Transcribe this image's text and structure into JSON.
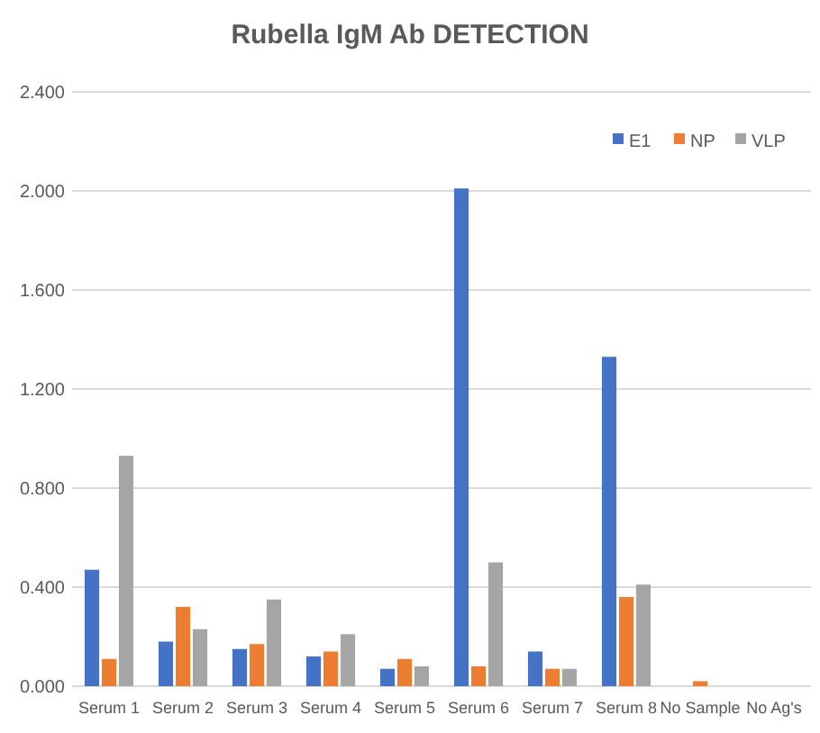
{
  "chart_data": {
    "type": "bar",
    "title": "Rubella IgM Ab DETECTION",
    "categories": [
      "Serum 1",
      "Serum 2",
      "Serum 3",
      "Serum 4",
      "Serum 5",
      "Serum 6",
      "Serum 7",
      "Serum 8",
      "No Sample",
      "No Ag's"
    ],
    "series": [
      {
        "name": "E1",
        "color": "#4472c4",
        "values": [
          0.47,
          0.18,
          0.15,
          0.12,
          0.07,
          2.01,
          0.14,
          1.33,
          0,
          0
        ]
      },
      {
        "name": "NP",
        "color": "#ed7d31",
        "values": [
          0.11,
          0.32,
          0.17,
          0.14,
          0.11,
          0.08,
          0.07,
          0.36,
          0.02,
          0
        ]
      },
      {
        "name": "VLP",
        "color": "#a5a5a5",
        "values": [
          0.93,
          0.23,
          0.35,
          0.21,
          0.08,
          0.5,
          0.07,
          0.41,
          0,
          0
        ]
      }
    ],
    "ylim": [
      0,
      2.4
    ],
    "yticks": [
      {
        "value": 0,
        "label": "0.000"
      },
      {
        "value": 0.4,
        "label": "0.400"
      },
      {
        "value": 0.8,
        "label": "0.800"
      },
      {
        "value": 1.2,
        "label": "1.200"
      },
      {
        "value": 1.6,
        "label": "1.600"
      },
      {
        "value": 2.0,
        "label": "2.000"
      },
      {
        "value": 2.4,
        "label": "2.400"
      }
    ],
    "grid": "y",
    "legend": "top right"
  }
}
